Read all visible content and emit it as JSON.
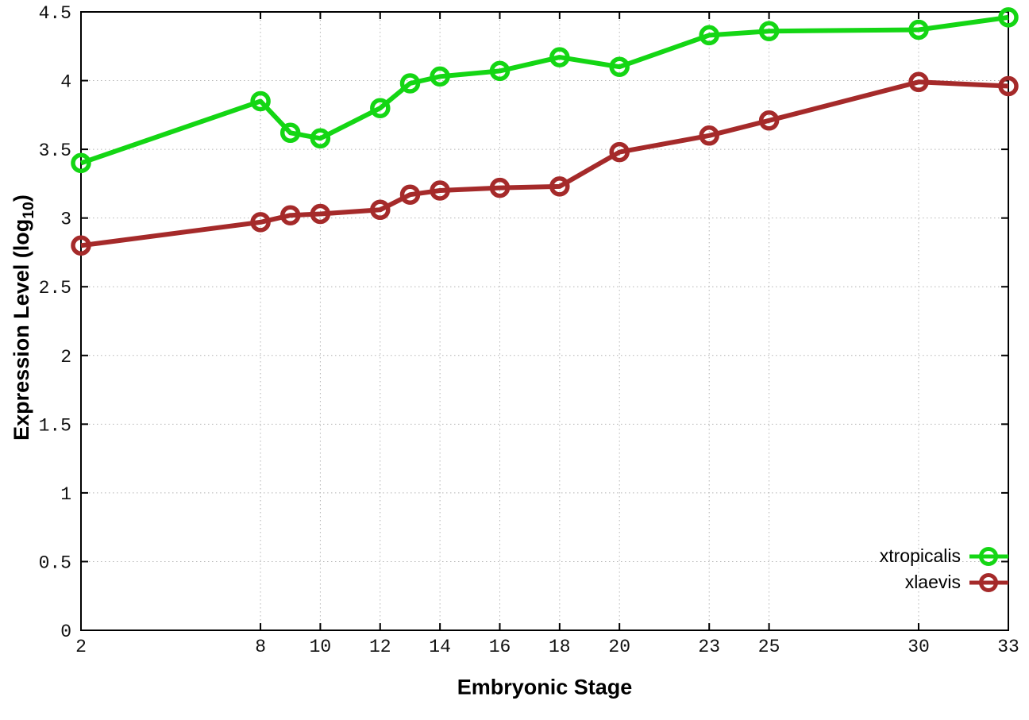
{
  "chart_data": {
    "type": "line",
    "title": "",
    "xlabel": "Embryonic Stage",
    "ylabel": {
      "main": "Expression Level (log",
      "sub": "10",
      "close": ")"
    },
    "x": [
      2,
      8,
      9,
      10,
      12,
      13,
      14,
      16,
      18,
      20,
      23,
      25,
      30,
      33
    ],
    "series": [
      {
        "name": "xtropicalis",
        "color": "#14d614",
        "values": [
          3.4,
          3.85,
          3.62,
          3.58,
          3.8,
          3.98,
          4.03,
          4.07,
          4.17,
          4.1,
          4.33,
          4.36,
          4.37,
          4.46
        ]
      },
      {
        "name": "xlaevis",
        "color": "#a52a2a",
        "values": [
          2.8,
          2.97,
          3.02,
          3.03,
          3.06,
          3.17,
          3.2,
          3.22,
          3.23,
          3.48,
          3.6,
          3.71,
          3.99,
          3.96
        ]
      }
    ],
    "xlim": [
      2,
      33
    ],
    "ylim": [
      0,
      4.5
    ],
    "x_ticks": [
      "2",
      "8",
      "10",
      "12",
      "14",
      "16",
      "18",
      "20",
      "23",
      "25",
      "30",
      "33"
    ],
    "y_ticks": [
      "0",
      "0.5",
      "1",
      "1.5",
      "2",
      "2.5",
      "3",
      "3.5",
      "4",
      "4.5"
    ],
    "grid": true,
    "legend_position": "inside-bottom-right",
    "colors": {
      "background": "#ffffff",
      "border": "#000000",
      "grid": "#b4b4b4",
      "tick_label": "#111111"
    }
  }
}
